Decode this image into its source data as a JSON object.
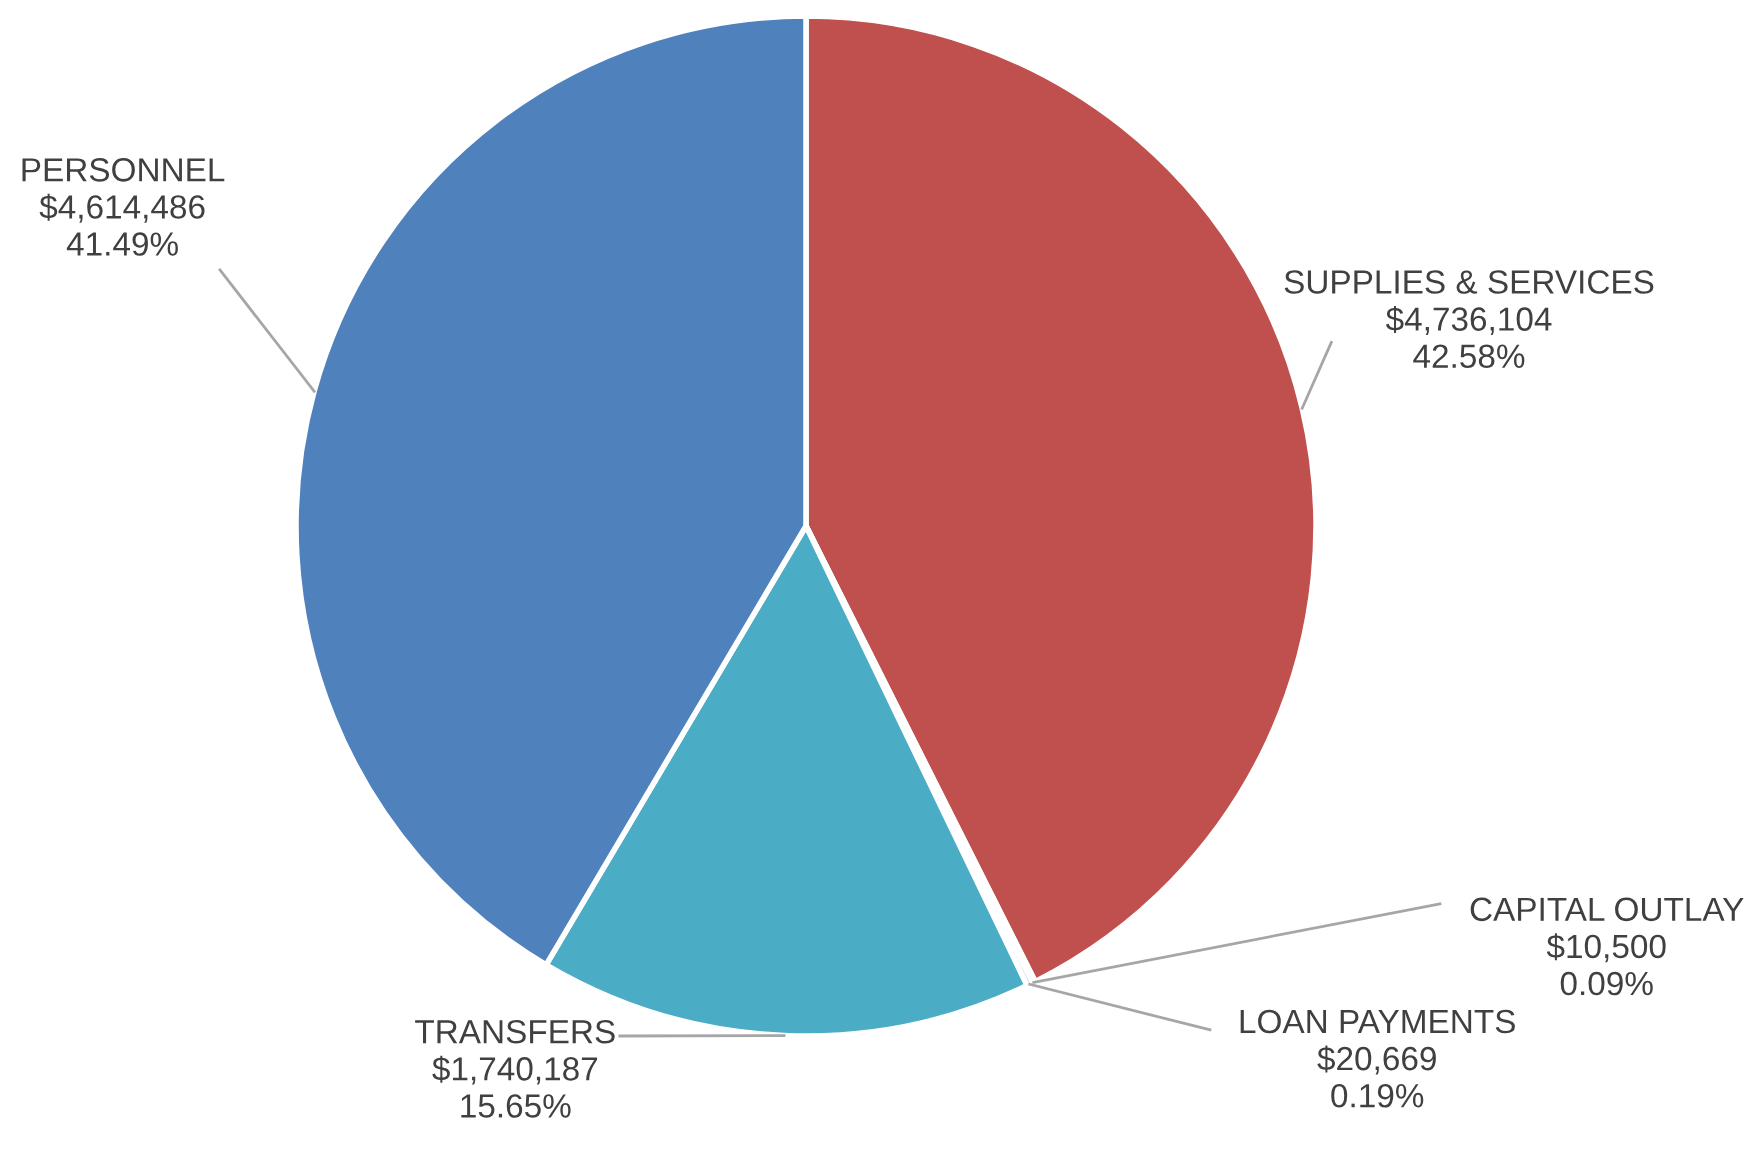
{
  "chart_data": {
    "type": "pie",
    "categories": [
      "SUPPLIES & SERVICES",
      "CAPITAL OUTLAY",
      "LOAN PAYMENTS",
      "TRANSFERS",
      "PERSONNEL"
    ],
    "values": [
      4736104,
      10500,
      20669,
      1740187,
      4614486
    ],
    "value_labels": [
      "$4,736,104\n42.58%",
      "$10,500\n0.09%",
      "$20,669\n0.19%",
      "$1,740,187\n15.65%",
      "$4,614,486\n41.49%"
    ],
    "colors": [
      "#c0504d",
      "#9bbb59",
      "#8064a2",
      "#4bacc6",
      "#4f81bd"
    ]
  }
}
